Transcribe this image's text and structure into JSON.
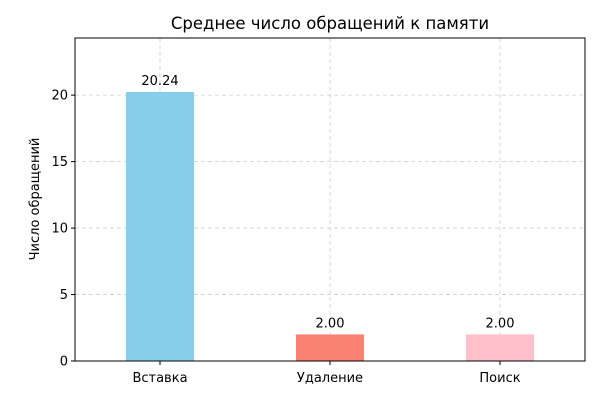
{
  "chart_data": {
    "type": "bar",
    "title": "Среднее число обращений к памяти",
    "xlabel": "",
    "ylabel": "Число обращений",
    "categories": [
      "Вставка",
      "Удаление",
      "Поиск"
    ],
    "values": [
      20.24,
      2.0,
      2.0
    ],
    "value_labels": [
      "20.24",
      "2.00",
      "2.00"
    ],
    "colors": [
      "#87ceeb",
      "#fa8072",
      "#ffc0cb"
    ],
    "ylim": [
      0,
      24.3
    ],
    "yticks": [
      0,
      5,
      10,
      15,
      20
    ],
    "grid": true,
    "legend": "none"
  }
}
